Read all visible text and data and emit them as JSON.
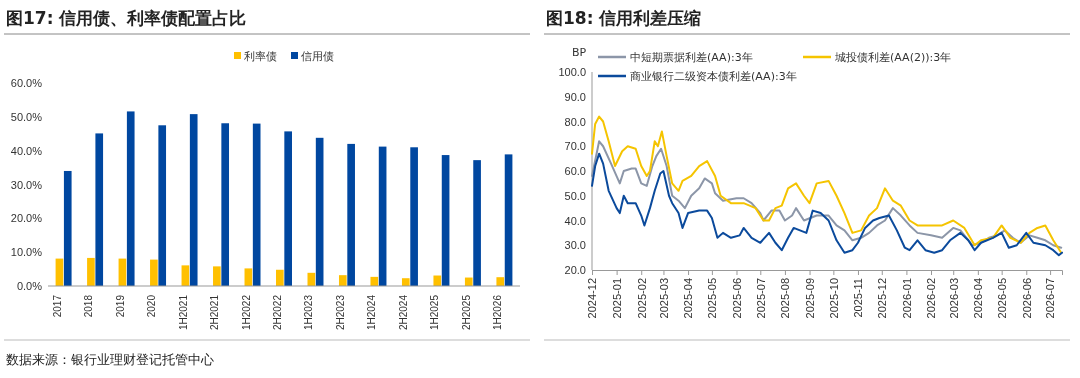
{
  "chart_data": [
    {
      "type": "bar",
      "title": "图17: 信用债、利率债配置占比",
      "categories": [
        "2017",
        "2018",
        "2019",
        "2020",
        "1H2021",
        "2H2021",
        "1H2022",
        "2H2022",
        "1H2023",
        "2H2023",
        "1H2024",
        "2H2024",
        "1H2025",
        "2H2025",
        "1H2026"
      ],
      "series": [
        {
          "name": "利率债",
          "color": "#ffc000",
          "values": [
            8.1,
            8.3,
            8.1,
            7.8,
            6.1,
            5.8,
            5.2,
            4.8,
            3.9,
            3.2,
            2.7,
            2.3,
            3.1,
            2.5,
            2.6
          ]
        },
        {
          "name": "信用债",
          "color": "#0047a0",
          "values": [
            34.0,
            45.1,
            51.6,
            47.5,
            50.8,
            48.1,
            48.0,
            45.7,
            43.8,
            42.0,
            41.2,
            41.0,
            38.7,
            37.2,
            38.9
          ]
        }
      ],
      "ylim": [
        0,
        60
      ],
      "yticks": [
        {
          "value": 0,
          "label": "0.0%"
        },
        {
          "value": 10,
          "label": "10.0%"
        },
        {
          "value": 20,
          "label": "20.0%"
        },
        {
          "value": 30,
          "label": "30.0%"
        },
        {
          "value": 40,
          "label": "40.0%"
        },
        {
          "value": 50,
          "label": "50.0%"
        },
        {
          "value": 60,
          "label": "60.0%"
        }
      ],
      "grid": false,
      "legend": "top",
      "annotations": [
        "数据来源：银行业理财登记托管中心"
      ]
    },
    {
      "type": "line",
      "title": "图18: 信用利差压缩",
      "ylabel": "BP",
      "series": [
        {
          "name": "中短期票据利差(AA):3年",
          "color": "#8c96a8",
          "x": [
            "2024-12-01",
            "2024-12-10",
            "2024-12-15",
            "2024-12-25",
            "2025-01-05",
            "2025-01-10",
            "2025-01-20",
            "2025-01-25",
            "2025-02-01",
            "2025-02-08",
            "2025-02-15",
            "2025-02-20",
            "2025-02-26",
            "2025-03-05",
            "2025-03-12",
            "2025-03-20",
            "2025-03-28",
            "2025-04-05",
            "2025-04-15",
            "2025-04-22",
            "2025-05-01",
            "2025-05-05",
            "2025-05-15",
            "2025-06-01",
            "2025-06-10",
            "2025-06-20",
            "2025-07-01",
            "2025-07-05",
            "2025-07-15",
            "2025-07-25",
            "2025-08-01",
            "2025-08-10",
            "2025-08-15",
            "2025-08-25",
            "2025-09-10",
            "2025-09-25",
            "2025-10-05",
            "2025-10-15",
            "2025-10-25",
            "2025-11-05",
            "2025-11-15",
            "2025-11-25",
            "2025-12-05",
            "2025-12-15",
            "2025-12-25",
            "2026-01-05",
            "2026-01-15",
            "2026-02-01",
            "2026-02-15",
            "2026-03-01",
            "2026-03-10",
            "2026-03-25",
            "2026-04-05",
            "2026-04-15",
            "2026-04-25",
            "2026-05-05",
            "2026-05-15",
            "2026-05-25",
            "2026-06-05",
            "2026-06-15",
            "2026-06-25",
            "2026-07-05",
            "2026-07-15"
          ],
          "values": [
            58,
            72,
            70,
            63,
            55,
            60,
            61,
            61,
            55,
            54,
            62,
            66,
            69,
            62,
            50,
            48,
            45,
            50,
            53,
            57,
            55,
            51,
            48,
            49,
            49,
            47,
            43,
            40,
            44,
            44,
            40,
            42,
            45,
            40,
            42,
            42,
            38,
            36,
            32,
            33,
            35,
            38,
            40,
            45,
            42,
            38,
            35,
            34,
            33,
            37,
            36,
            30,
            31,
            33,
            34,
            36,
            33,
            31,
            34,
            33,
            32,
            30,
            29
          ]
        },
        {
          "name": "城投债利差(AA(2)):3年",
          "color": "#f5c400",
          "x": [
            "2024-12-01",
            "2024-12-05",
            "2024-12-10",
            "2024-12-15",
            "2024-12-22",
            "2024-12-30",
            "2025-01-08",
            "2025-01-15",
            "2025-01-25",
            "2025-02-01",
            "2025-02-08",
            "2025-02-12",
            "2025-02-18",
            "2025-02-22",
            "2025-02-27",
            "2025-03-05",
            "2025-03-12",
            "2025-03-20",
            "2025-03-25",
            "2025-04-05",
            "2025-04-15",
            "2025-04-25",
            "2025-05-05",
            "2025-05-12",
            "2025-05-25",
            "2025-06-10",
            "2025-06-25",
            "2025-07-05",
            "2025-07-12",
            "2025-07-20",
            "2025-07-28",
            "2025-08-05",
            "2025-08-15",
            "2025-08-25",
            "2025-09-01",
            "2025-09-10",
            "2025-09-25",
            "2025-10-05",
            "2025-10-15",
            "2025-10-25",
            "2025-11-05",
            "2025-11-15",
            "2025-11-25",
            "2025-12-05",
            "2025-12-15",
            "2025-12-25",
            "2026-01-05",
            "2026-01-15",
            "2026-02-01",
            "2026-02-15",
            "2026-03-01",
            "2026-03-15",
            "2026-03-28",
            "2026-04-05",
            "2026-04-20",
            "2026-05-01",
            "2026-05-12",
            "2026-05-25",
            "2026-06-05",
            "2026-06-15",
            "2026-06-25",
            "2026-07-05",
            "2026-07-15"
          ],
          "values": [
            67,
            79,
            82,
            80,
            72,
            62,
            68,
            70,
            69,
            62,
            58,
            60,
            72,
            70,
            76,
            66,
            55,
            52,
            56,
            58,
            62,
            64,
            58,
            50,
            47,
            47,
            45,
            40,
            40,
            45,
            46,
            53,
            55,
            50,
            47,
            55,
            56,
            50,
            43,
            35,
            36,
            42,
            45,
            53,
            48,
            46,
            40,
            38,
            38,
            38,
            40,
            37,
            30,
            32,
            33,
            38,
            33,
            31,
            35,
            37,
            38,
            32,
            27
          ]
        },
        {
          "name": "商业银行二级资本债利差(AA):3年",
          "color": "#0b4a9c",
          "x": [
            "2024-12-01",
            "2024-12-05",
            "2024-12-10",
            "2024-12-15",
            "2024-12-22",
            "2025-01-01",
            "2025-01-05",
            "2025-01-10",
            "2025-01-15",
            "2025-01-25",
            "2025-02-01",
            "2025-02-05",
            "2025-02-12",
            "2025-02-18",
            "2025-02-25",
            "2025-03-01",
            "2025-03-08",
            "2025-03-12",
            "2025-03-20",
            "2025-03-25",
            "2025-04-01",
            "2025-04-15",
            "2025-04-25",
            "2025-05-01",
            "2025-05-08",
            "2025-05-15",
            "2025-05-25",
            "2025-06-05",
            "2025-06-10",
            "2025-06-20",
            "2025-07-01",
            "2025-07-12",
            "2025-07-20",
            "2025-07-28",
            "2025-08-05",
            "2025-08-12",
            "2025-08-20",
            "2025-08-28",
            "2025-09-05",
            "2025-09-15",
            "2025-09-25",
            "2025-10-05",
            "2025-10-15",
            "2025-10-25",
            "2025-11-01",
            "2025-11-10",
            "2025-11-20",
            "2025-11-28",
            "2025-12-10",
            "2025-12-20",
            "2025-12-30",
            "2026-01-05",
            "2026-01-15",
            "2026-01-25",
            "2026-02-05",
            "2026-02-15",
            "2026-02-25",
            "2026-03-10",
            "2026-03-20",
            "2026-03-28",
            "2026-04-05",
            "2026-04-20",
            "2026-05-01",
            "2026-05-10",
            "2026-05-20",
            "2026-06-01",
            "2026-06-10",
            "2026-06-25",
            "2026-07-05",
            "2026-07-12",
            "2026-07-16"
          ],
          "values": [
            54,
            62,
            67,
            63,
            52,
            45,
            43,
            50,
            47,
            47,
            42,
            38,
            45,
            52,
            59,
            60,
            50,
            47,
            43,
            37,
            43,
            44,
            44,
            41,
            33,
            35,
            33,
            34,
            37,
            33,
            31,
            35,
            31,
            28,
            33,
            37,
            36,
            35,
            44,
            43,
            40,
            32,
            27,
            28,
            31,
            37,
            40,
            41,
            42,
            36,
            29,
            28,
            32,
            28,
            27,
            28,
            32,
            35,
            32,
            28,
            31,
            33,
            35,
            29,
            30,
            35,
            31,
            30,
            28,
            26,
            27
          ]
        }
      ],
      "xlim": [
        "2024-12-01",
        "2026-07-16"
      ],
      "xticks": [
        "2024-12",
        "2025-01",
        "2025-02",
        "2025-03",
        "2025-04",
        "2025-05",
        "2025-06",
        "2025-07",
        "2025-08",
        "2025-09",
        "2025-10",
        "2025-11",
        "2025-12",
        "2026-01",
        "2026-02",
        "2026-03",
        "2026-04",
        "2026-05",
        "2026-06",
        "2026-07"
      ],
      "ylim": [
        20,
        100
      ],
      "yticks": [
        {
          "value": 20,
          "label": "20.0"
        },
        {
          "value": 30,
          "label": "30.0"
        },
        {
          "value": 40,
          "label": "40.0"
        },
        {
          "value": 50,
          "label": "50.0"
        },
        {
          "value": 60,
          "label": "60.0"
        },
        {
          "value": 70,
          "label": "70.0"
        },
        {
          "value": 80,
          "label": "80.0"
        },
        {
          "value": 90,
          "label": "90.0"
        },
        {
          "value": 100,
          "label": "100.0"
        }
      ],
      "grid": false,
      "legend": "top left",
      "line_style": "solid",
      "marker": "none"
    }
  ]
}
